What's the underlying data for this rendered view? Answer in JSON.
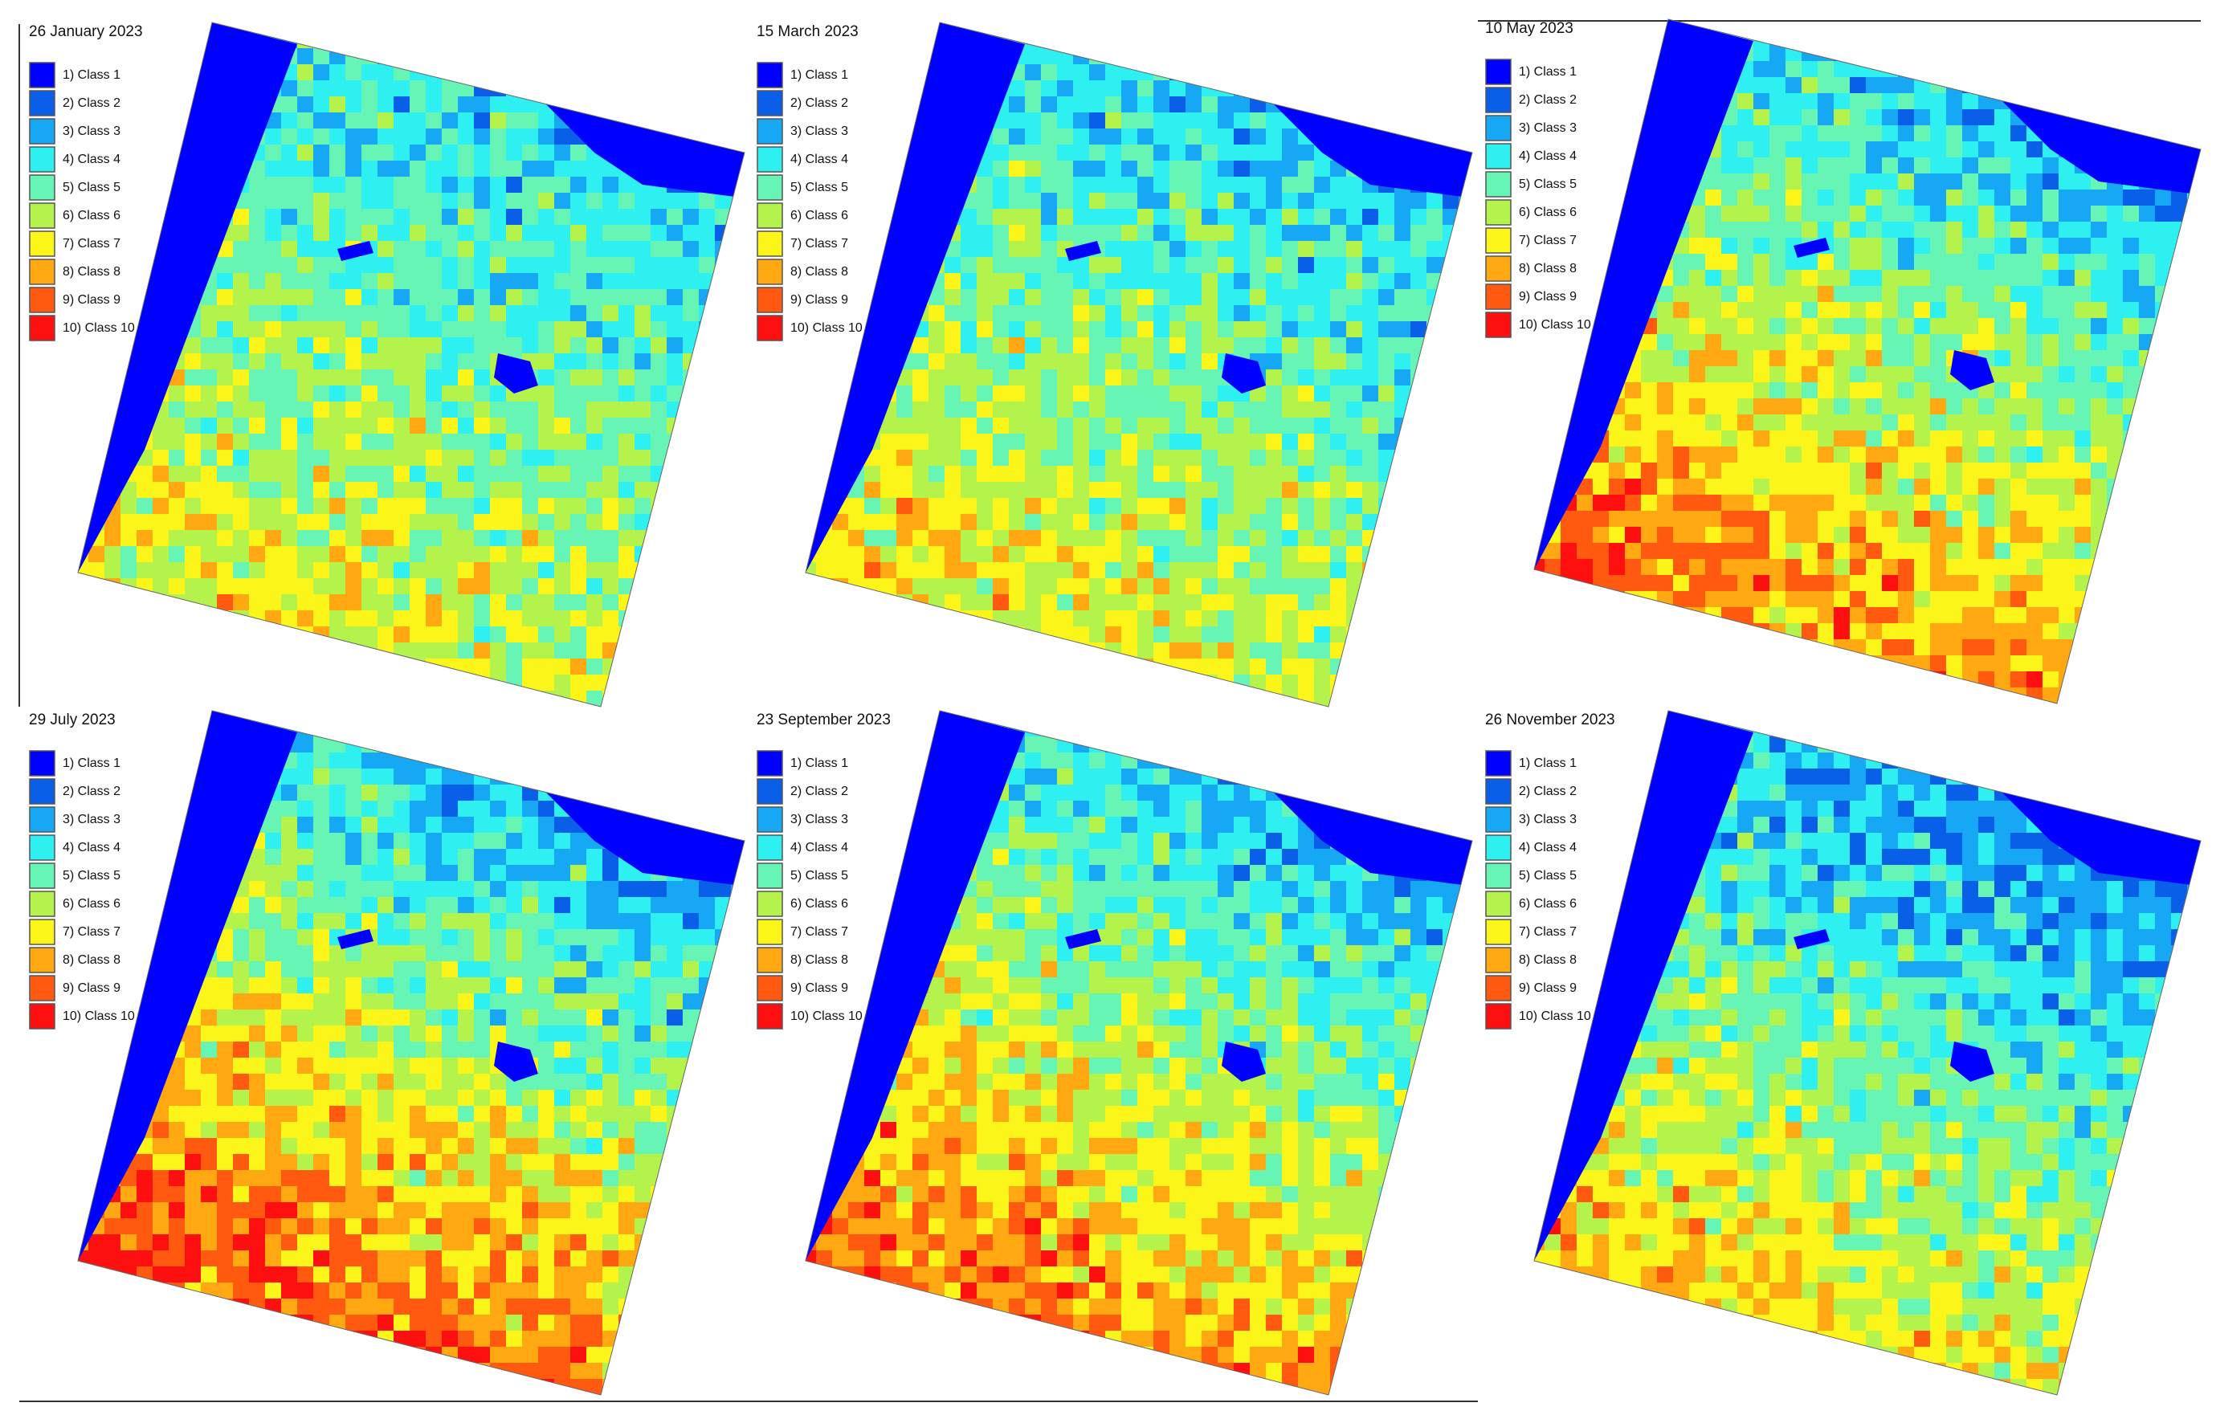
{
  "panels": [
    {
      "title": "26 January 2023"
    },
    {
      "title": "15 March 2023"
    },
    {
      "title": "10 May 2023"
    },
    {
      "title": "29 July 2023"
    },
    {
      "title": "23 September 2023"
    },
    {
      "title": "26 November 2023"
    }
  ],
  "legend": [
    {
      "label": "1) Class 1",
      "color": "#0000ff"
    },
    {
      "label": "2) Class 2",
      "color": "#0a5fe8"
    },
    {
      "label": "3) Class 3",
      "color": "#16a8f4"
    },
    {
      "label": "4) Class 4",
      "color": "#2ef0f0"
    },
    {
      "label": "5) Class 5",
      "color": "#66f5b4"
    },
    {
      "label": "6) Class 6",
      "color": "#b4f34c"
    },
    {
      "label": "7) Class 7",
      "color": "#fbf51a"
    },
    {
      "label": "8) Class 8",
      "color": "#ffa812"
    },
    {
      "label": "9) Class 9",
      "color": "#ff5a10"
    },
    {
      "label": "10) Class 10",
      "color": "#ff1010"
    }
  ]
}
